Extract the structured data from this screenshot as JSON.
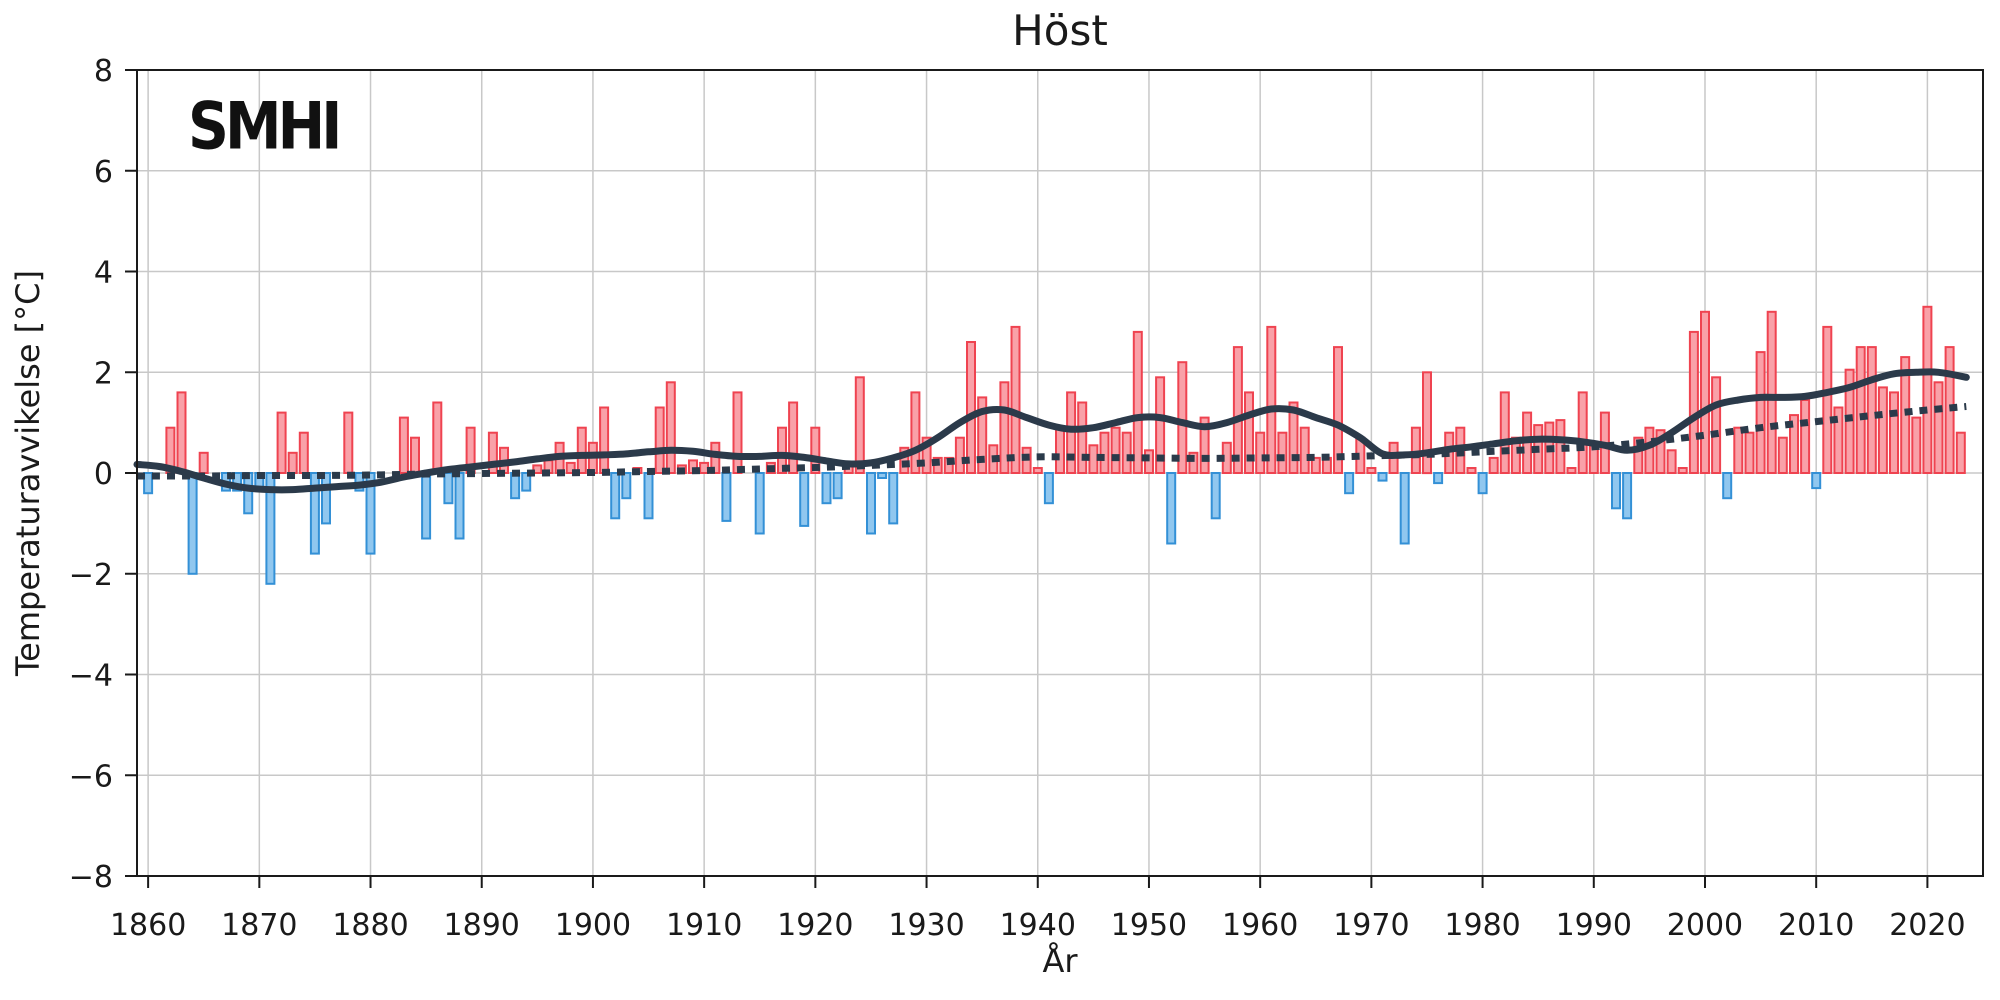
{
  "header": {
    "title": "Höst",
    "logo": "SMHI"
  },
  "axes": {
    "x_label": "År",
    "y_label": "Temperaturavvikelse [°C]",
    "x_ticks": [
      1860,
      1870,
      1880,
      1890,
      1900,
      1910,
      1920,
      1930,
      1940,
      1950,
      1960,
      1970,
      1980,
      1990,
      2000,
      2010,
      2020
    ],
    "x_tick_labels": [
      "1860",
      "1870",
      "1880",
      "1890",
      "1900",
      "1910",
      "1920",
      "1930",
      "1940",
      "1950",
      "1960",
      "1970",
      "1980",
      "1990",
      "2000",
      "2010",
      "2020"
    ],
    "y_ticks": [
      -8,
      -6,
      -4,
      -2,
      0,
      2,
      4,
      6,
      8
    ],
    "y_tick_labels": [
      "−8",
      "−6",
      "−4",
      "−2",
      "0",
      "2",
      "4",
      "6",
      "8"
    ]
  },
  "colors": {
    "bar_positive_fill": "#F9A1A8",
    "bar_positive_edge": "#EF4350",
    "bar_negative_fill": "#90C7EF",
    "bar_negative_edge": "#3390D6",
    "smooth_line": "#2B3A4A",
    "trend_line": "#2B3A4A",
    "grid": "#C8C8C8",
    "frame": "#1A1A1A",
    "text": "#1A1A1A"
  },
  "chart_data": {
    "type": "bar",
    "title": "Höst",
    "xlabel": "År",
    "ylabel": "Temperaturavvikelse [°C]",
    "x_range": [
      1859,
      2025
    ],
    "ylim": [
      -8,
      8
    ],
    "grid": true,
    "legend": "none",
    "start_year": 1860,
    "values": [
      -0.4,
      0.0,
      0.9,
      1.6,
      -2.0,
      0.4,
      0.0,
      -0.35,
      -0.35,
      -0.8,
      -0.35,
      -2.2,
      1.2,
      0.4,
      0.8,
      -1.6,
      -1.0,
      0.0,
      1.2,
      -0.35,
      -1.6,
      0.0,
      0.0,
      1.1,
      0.7,
      -1.3,
      1.4,
      -0.6,
      -1.3,
      0.9,
      0.0,
      0.8,
      0.5,
      -0.5,
      -0.35,
      0.15,
      0.25,
      0.6,
      0.2,
      0.9,
      0.6,
      1.3,
      -0.9,
      -0.5,
      0.1,
      -0.9,
      1.3,
      1.8,
      0.15,
      0.25,
      0.2,
      0.6,
      -0.95,
      1.6,
      0.0,
      -1.2,
      0.2,
      0.9,
      1.4,
      -1.05,
      0.9,
      -0.6,
      -0.5,
      0.2,
      1.9,
      -1.2,
      -0.1,
      -1.0,
      0.5,
      1.6,
      0.7,
      0.3,
      0.3,
      0.7,
      2.6,
      1.5,
      0.55,
      1.8,
      2.9,
      0.5,
      0.1,
      -0.6,
      0.9,
      1.6,
      1.4,
      0.55,
      0.8,
      0.9,
      0.8,
      2.8,
      0.45,
      1.9,
      -1.4,
      2.2,
      0.4,
      1.1,
      -0.9,
      0.6,
      2.5,
      1.6,
      0.8,
      2.9,
      0.8,
      1.4,
      0.9,
      0.3,
      0.3,
      2.5,
      -0.4,
      0.7,
      0.1,
      -0.15,
      0.6,
      -1.4,
      0.9,
      2.0,
      -0.2,
      0.8,
      0.9,
      0.1,
      -0.4,
      0.3,
      1.6,
      0.7,
      1.2,
      0.95,
      1.0,
      1.05,
      0.1,
      1.6,
      0.6,
      1.2,
      -0.7,
      -0.9,
      0.7,
      0.9,
      0.85,
      0.45,
      0.1,
      2.8,
      3.2,
      1.9,
      -0.5,
      0.9,
      0.8,
      2.4,
      3.2,
      0.7,
      1.15,
      1.45,
      -0.3,
      2.9,
      1.3,
      2.05,
      2.5,
      2.5,
      1.7,
      1.6,
      2.3,
      1.1,
      3.3,
      1.8,
      2.5,
      0.8
    ],
    "series": [
      {
        "name": "smoothed",
        "style": "solid",
        "x": [
          1859,
          1861,
          1863,
          1865,
          1867,
          1869,
          1871,
          1873,
          1875,
          1877,
          1879,
          1881,
          1883,
          1885,
          1887,
          1889,
          1891,
          1893,
          1895,
          1897,
          1899,
          1901,
          1903,
          1905,
          1907,
          1909,
          1911,
          1913,
          1915,
          1917,
          1919,
          1921,
          1923,
          1925,
          1927,
          1929,
          1931,
          1933,
          1935,
          1937,
          1939,
          1941,
          1943,
          1945,
          1947,
          1949,
          1951,
          1953,
          1955,
          1957,
          1959,
          1961,
          1963,
          1965,
          1967,
          1969,
          1971,
          1973,
          1975,
          1977,
          1979,
          1981,
          1983,
          1985,
          1987,
          1989,
          1991,
          1993,
          1995,
          1997,
          1999,
          2001,
          2003,
          2005,
          2007,
          2009,
          2011,
          2013,
          2015,
          2017,
          2019,
          2021,
          2023.5
        ],
        "y": [
          0.17,
          0.13,
          0.03,
          -0.1,
          -0.22,
          -0.3,
          -0.33,
          -0.33,
          -0.3,
          -0.27,
          -0.24,
          -0.18,
          -0.08,
          0.0,
          0.07,
          0.12,
          0.17,
          0.22,
          0.28,
          0.33,
          0.35,
          0.36,
          0.38,
          0.42,
          0.45,
          0.43,
          0.37,
          0.33,
          0.33,
          0.35,
          0.31,
          0.24,
          0.18,
          0.2,
          0.3,
          0.45,
          0.7,
          1.0,
          1.22,
          1.25,
          1.1,
          0.95,
          0.87,
          0.9,
          1.0,
          1.1,
          1.1,
          1.0,
          0.92,
          1.0,
          1.15,
          1.27,
          1.25,
          1.1,
          0.95,
          0.7,
          0.38,
          0.36,
          0.4,
          0.47,
          0.52,
          0.58,
          0.64,
          0.67,
          0.66,
          0.62,
          0.55,
          0.45,
          0.55,
          0.8,
          1.1,
          1.35,
          1.45,
          1.5,
          1.5,
          1.52,
          1.6,
          1.7,
          1.85,
          1.97,
          2.0,
          2.0,
          1.9
        ]
      },
      {
        "name": "trend",
        "style": "dotted",
        "x": [
          1859,
          1865,
          1870,
          1875,
          1880,
          1885,
          1890,
          1895,
          1900,
          1905,
          1910,
          1915,
          1920,
          1925,
          1930,
          1935,
          1940,
          1945,
          1950,
          1955,
          1960,
          1965,
          1970,
          1975,
          1980,
          1985,
          1990,
          1995,
          2000,
          2005,
          2010,
          2015,
          2020,
          2023.5
        ],
        "y": [
          -0.06,
          -0.06,
          -0.05,
          -0.05,
          -0.04,
          -0.02,
          -0.01,
          0.0,
          0.01,
          0.03,
          0.05,
          0.08,
          0.11,
          0.15,
          0.2,
          0.27,
          0.32,
          0.31,
          0.3,
          0.29,
          0.3,
          0.31,
          0.34,
          0.37,
          0.42,
          0.47,
          0.52,
          0.62,
          0.75,
          0.9,
          1.02,
          1.14,
          1.25,
          1.32
        ]
      }
    ]
  }
}
